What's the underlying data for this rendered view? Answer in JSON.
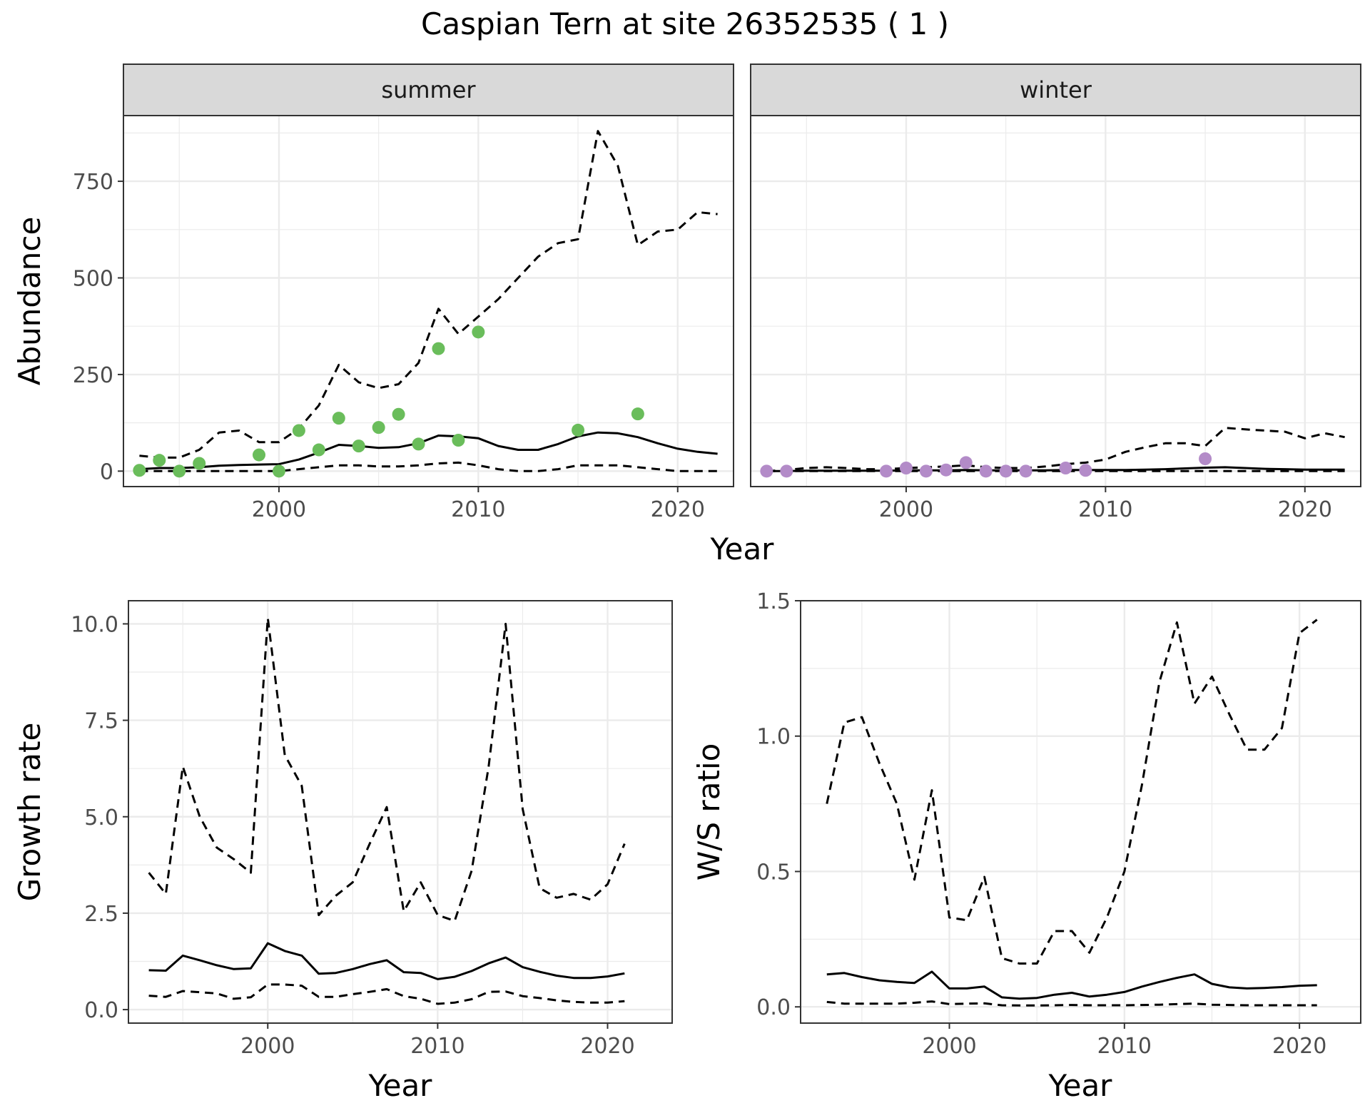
{
  "title": "Caspian Tern at site 26352535 ( 1 )",
  "colors": {
    "summer_points": "#6ABD5B",
    "winter_points": "#B38BC8",
    "line": "#000000",
    "strip_bg": "#D9D9D9",
    "grid": "#EBEBEB"
  },
  "chart_data": [
    {
      "id": "abundance",
      "type": "line",
      "xlabel": "Year",
      "ylabel": "Abundance",
      "xlim": [
        1992.2,
        2022.8
      ],
      "ylim": [
        -40,
        920
      ],
      "xticks": [
        2000,
        2010,
        2020
      ],
      "xtick_labels": [
        "2000",
        "2010",
        "2020"
      ],
      "yticks": [
        0,
        250,
        500,
        750
      ],
      "ytick_labels": [
        "0",
        "250",
        "500",
        "750"
      ],
      "facets": [
        {
          "strip": "summer",
          "x": [
            1993,
            1994,
            1995,
            1996,
            1997,
            1998,
            1999,
            2000,
            2001,
            2002,
            2003,
            2004,
            2005,
            2006,
            2007,
            2008,
            2009,
            2010,
            2011,
            2012,
            2013,
            2014,
            2015,
            2016,
            2017,
            2018,
            2019,
            2020,
            2021,
            2022
          ],
          "series": [
            {
              "role": "estimate",
              "style": "solid",
              "values": [
                5,
                8,
                8,
                10,
                14,
                16,
                17,
                18,
                30,
                48,
                68,
                65,
                60,
                62,
                72,
                92,
                90,
                85,
                65,
                55,
                55,
                70,
                90,
                100,
                98,
                88,
                72,
                58,
                50,
                45
              ]
            },
            {
              "role": "upper",
              "style": "dashed",
              "values": [
                40,
                35,
                35,
                55,
                100,
                105,
                75,
                75,
                110,
                170,
                275,
                230,
                215,
                225,
                280,
                420,
                355,
                400,
                445,
                500,
                555,
                590,
                600,
                880,
                790,
                585,
                620,
                625,
                670,
                665
              ]
            },
            {
              "role": "lower",
              "style": "dashed",
              "values": [
                0,
                0,
                0,
                0,
                0,
                0,
                0,
                0,
                5,
                10,
                15,
                15,
                12,
                12,
                15,
                20,
                22,
                15,
                5,
                0,
                0,
                5,
                15,
                15,
                15,
                10,
                5,
                0,
                0,
                0
              ]
            }
          ],
          "points": {
            "x": [
              1993,
              1994,
              1995,
              1996,
              1999,
              2000,
              2001,
              2002,
              2003,
              2004,
              2005,
              2006,
              2007,
              2008,
              2009,
              2010,
              2015,
              2018
            ],
            "y": [
              2,
              28,
              0,
              20,
              42,
              0,
              105,
              55,
              137,
              65,
              113,
              147,
              70,
              317,
              80,
              360,
              106,
              148
            ]
          }
        },
        {
          "strip": "winter",
          "x": [
            1993,
            1994,
            1995,
            1996,
            1997,
            1998,
            1999,
            2000,
            2001,
            2002,
            2003,
            2004,
            2005,
            2006,
            2007,
            2008,
            2009,
            2010,
            2011,
            2012,
            2013,
            2014,
            2015,
            2016,
            2017,
            2018,
            2019,
            2020,
            2021,
            2022
          ],
          "series": [
            {
              "role": "estimate",
              "style": "solid",
              "values": [
                0,
                0,
                1,
                1,
                1,
                1,
                1,
                2,
                2,
                2,
                3,
                2,
                2,
                2,
                2,
                3,
                3,
                3,
                3,
                4,
                5,
                7,
                9,
                10,
                8,
                6,
                5,
                4,
                4,
                4
              ]
            },
            {
              "role": "upper",
              "style": "dashed",
              "values": [
                0,
                3,
                8,
                10,
                8,
                5,
                5,
                8,
                10,
                12,
                15,
                10,
                8,
                8,
                12,
                18,
                22,
                30,
                50,
                62,
                72,
                72,
                65,
                112,
                108,
                105,
                102,
                85,
                98,
                88
              ]
            },
            {
              "role": "lower",
              "style": "dashed",
              "values": [
                0,
                0,
                0,
                0,
                0,
                0,
                0,
                0,
                0,
                0,
                0,
                0,
                0,
                0,
                0,
                0,
                0,
                0,
                0,
                0,
                0,
                0,
                0,
                0,
                0,
                0,
                0,
                0,
                0,
                0
              ]
            }
          ],
          "points": {
            "x": [
              1993,
              1994,
              1999,
              2000,
              2001,
              2002,
              2003,
              2004,
              2005,
              2006,
              2008,
              2009,
              2015
            ],
            "y": [
              0,
              0,
              0,
              8,
              0,
              3,
              22,
              0,
              0,
              0,
              8,
              2,
              32
            ]
          }
        }
      ]
    },
    {
      "id": "growth",
      "type": "line",
      "xlabel": "Year",
      "ylabel": "Growth rate",
      "xlim": [
        1991.8,
        2023.8
      ],
      "ylim": [
        -0.35,
        10.6
      ],
      "xticks": [
        2000,
        2010,
        2020
      ],
      "xtick_labels": [
        "2000",
        "2010",
        "2020"
      ],
      "yticks": [
        0,
        2.5,
        5,
        7.5,
        10
      ],
      "ytick_labels": [
        "0.0",
        "2.5",
        "5.0",
        "7.5",
        "10.0"
      ],
      "x": [
        1993,
        1994,
        1995,
        1996,
        1997,
        1998,
        1999,
        2000,
        2001,
        2002,
        2003,
        2004,
        2005,
        2006,
        2007,
        2008,
        2009,
        2010,
        2011,
        2012,
        2013,
        2014,
        2015,
        2016,
        2017,
        2018,
        2019,
        2020,
        2021
      ],
      "series": [
        {
          "role": "estimate",
          "style": "solid",
          "values": [
            1.02,
            1.01,
            1.4,
            1.28,
            1.15,
            1.05,
            1.07,
            1.72,
            1.52,
            1.4,
            0.93,
            0.95,
            1.05,
            1.18,
            1.28,
            0.97,
            0.95,
            0.79,
            0.85,
            1.0,
            1.2,
            1.35,
            1.1,
            0.98,
            0.88,
            0.82,
            0.82,
            0.86,
            0.94
          ]
        },
        {
          "role": "upper",
          "style": "dashed",
          "values": [
            3.55,
            3.0,
            6.3,
            5.0,
            4.2,
            3.9,
            3.55,
            10.15,
            6.6,
            5.8,
            2.45,
            2.95,
            3.3,
            4.3,
            5.25,
            2.55,
            3.3,
            2.45,
            2.3,
            3.6,
            6.3,
            10.0,
            5.2,
            3.15,
            2.9,
            3.0,
            2.85,
            3.25,
            4.3
          ]
        },
        {
          "role": "lower",
          "style": "dashed",
          "values": [
            0.36,
            0.33,
            0.48,
            0.45,
            0.42,
            0.28,
            0.32,
            0.65,
            0.65,
            0.62,
            0.33,
            0.33,
            0.4,
            0.46,
            0.53,
            0.35,
            0.28,
            0.15,
            0.18,
            0.27,
            0.46,
            0.47,
            0.35,
            0.3,
            0.24,
            0.2,
            0.18,
            0.18,
            0.22
          ]
        }
      ]
    },
    {
      "id": "ratio",
      "type": "line",
      "xlabel": "Year",
      "ylabel": "W/S ratio",
      "xlim": [
        1991.5,
        2023.5
      ],
      "ylim": [
        -0.06,
        1.5
      ],
      "xticks": [
        2000,
        2010,
        2020
      ],
      "xtick_labels": [
        "2000",
        "2010",
        "2020"
      ],
      "yticks": [
        0,
        0.5,
        1,
        1.5
      ],
      "ytick_labels": [
        "0.0",
        "0.5",
        "1.0",
        "1.5"
      ],
      "x": [
        1993,
        1994,
        1995,
        1996,
        1997,
        1998,
        1999,
        2000,
        2001,
        2002,
        2003,
        2004,
        2005,
        2006,
        2007,
        2008,
        2009,
        2010,
        2011,
        2012,
        2013,
        2014,
        2015,
        2016,
        2017,
        2018,
        2019,
        2020,
        2021
      ],
      "series": [
        {
          "role": "estimate",
          "style": "solid",
          "values": [
            0.12,
            0.125,
            0.11,
            0.098,
            0.092,
            0.088,
            0.13,
            0.068,
            0.068,
            0.075,
            0.035,
            0.03,
            0.033,
            0.045,
            0.052,
            0.038,
            0.045,
            0.055,
            0.075,
            0.092,
            0.107,
            0.12,
            0.085,
            0.072,
            0.068,
            0.07,
            0.073,
            0.078,
            0.08
          ]
        },
        {
          "role": "upper",
          "style": "dashed",
          "values": [
            0.75,
            1.05,
            1.07,
            0.9,
            0.75,
            0.47,
            0.8,
            0.33,
            0.32,
            0.48,
            0.18,
            0.16,
            0.16,
            0.28,
            0.28,
            0.2,
            0.33,
            0.5,
            0.82,
            1.2,
            1.42,
            1.12,
            1.22,
            1.08,
            0.95,
            0.95,
            1.03,
            1.38,
            1.43
          ]
        },
        {
          "role": "lower",
          "style": "dashed",
          "values": [
            0.018,
            0.012,
            0.012,
            0.012,
            0.012,
            0.015,
            0.02,
            0.01,
            0.012,
            0.013,
            0.006,
            0.005,
            0.005,
            0.006,
            0.007,
            0.006,
            0.006,
            0.006,
            0.007,
            0.008,
            0.01,
            0.012,
            0.008,
            0.007,
            0.006,
            0.006,
            0.006,
            0.006,
            0.006
          ]
        }
      ]
    }
  ]
}
